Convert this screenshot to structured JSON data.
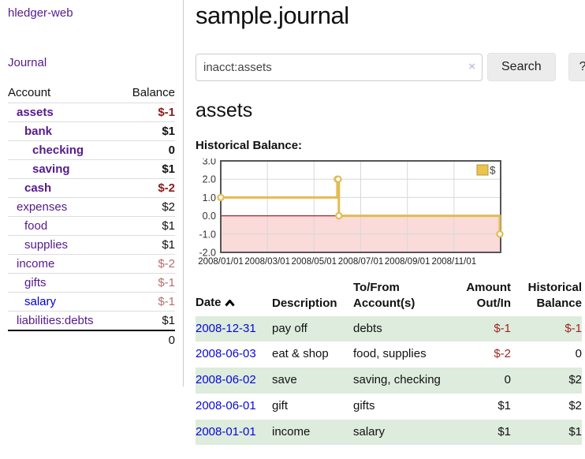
{
  "app": {
    "title": "hledger-web"
  },
  "sidebar": {
    "nav_journal": "Journal",
    "balances": {
      "col_account": "Account",
      "col_balance": "Balance",
      "accounts": [
        {
          "name": "assets",
          "indent": 1,
          "bold": true,
          "balance": "$-1"
        },
        {
          "name": "bank",
          "indent": 2,
          "bold": true,
          "balance": "$1"
        },
        {
          "name": "checking",
          "indent": 3,
          "bold": true,
          "balance": "0"
        },
        {
          "name": "saving",
          "indent": 3,
          "bold": true,
          "balance": "$1"
        },
        {
          "name": "cash",
          "indent": 2,
          "bold": true,
          "balance": "$-2"
        },
        {
          "name": "expenses",
          "indent": 1,
          "bold": false,
          "balance": "$2"
        },
        {
          "name": "food",
          "indent": 2,
          "bold": false,
          "balance": "$1"
        },
        {
          "name": "supplies",
          "indent": 2,
          "bold": false,
          "balance": "$1"
        },
        {
          "name": "income",
          "indent": 1,
          "bold": false,
          "balance": "$-2"
        },
        {
          "name": "gifts",
          "indent": 2,
          "bold": false,
          "balance": "$-1"
        },
        {
          "name": "salary",
          "indent": 2,
          "bold": false,
          "balance": "$-1",
          "blue": true
        },
        {
          "name": "liabilities:debts",
          "indent": 1,
          "bold": false,
          "balance": "$1"
        }
      ],
      "total": "0"
    }
  },
  "main": {
    "title": "sample.journal",
    "search": {
      "value": "inacct:assets",
      "clear": "×",
      "button": "Search",
      "help": "?"
    },
    "account_heading": "assets",
    "chart_heading": "Historical Balance:"
  },
  "chart_data": {
    "type": "line",
    "step": true,
    "title": "Historical Balance:",
    "series": [
      {
        "name": "$",
        "points": [
          [
            "2008-01-01",
            1
          ],
          [
            "2008-06-01",
            2
          ],
          [
            "2008-06-02",
            2
          ],
          [
            "2008-06-03",
            0
          ],
          [
            "2008-12-31",
            -1
          ]
        ]
      }
    ],
    "ylim": [
      -2,
      3
    ],
    "yticks": [
      "3.0",
      "2.0",
      "1.0",
      "0.0",
      "-1.0",
      "-2.0"
    ],
    "ytick_values": [
      3,
      2,
      1,
      0,
      -1,
      -2
    ],
    "xticks": [
      "2008/01/01",
      "2008/03/01",
      "2008/05/01",
      "2008/07/01",
      "2008/09/01",
      "2008/11/01"
    ],
    "xtick_months": [
      0,
      2,
      4,
      6,
      8,
      10
    ],
    "x_range_months": 12,
    "grid": true,
    "legend": "$",
    "legend_position": "top-right"
  },
  "transactions": {
    "headers": {
      "date": "Date",
      "description": "Description",
      "tofrom": "To/From Account(s)",
      "amount": "Amount Out/In",
      "balance": "Historical Balance"
    },
    "rows": [
      {
        "date": "2008-12-31",
        "description": "pay off",
        "accounts": "debts",
        "amount": "$-1",
        "balance": "$-1"
      },
      {
        "date": "2008-06-03",
        "description": "eat & shop",
        "accounts": "food, supplies",
        "amount": "$-2",
        "balance": "0"
      },
      {
        "date": "2008-06-02",
        "description": "save",
        "accounts": "saving, checking",
        "amount": "0",
        "balance": "$2"
      },
      {
        "date": "2008-06-01",
        "description": "gift",
        "accounts": "gifts",
        "amount": "$1",
        "balance": "$2"
      },
      {
        "date": "2008-01-01",
        "description": "income",
        "accounts": "salary",
        "amount": "$1",
        "balance": "$1"
      }
    ]
  },
  "colors": {
    "link_purple": "#551a8b",
    "link_blue": "#0707d9",
    "negative_strong": "#8b1a1a",
    "negative_soft": "#b96d6d",
    "row_stripe_green": "#ddecdc",
    "chart_line_gold": "#e2bc52",
    "chart_negative_fill": "#fbdada",
    "chart_zero_line": "#a02828",
    "chart_border": "#555555",
    "chart_grid": "#d8d8d8"
  }
}
